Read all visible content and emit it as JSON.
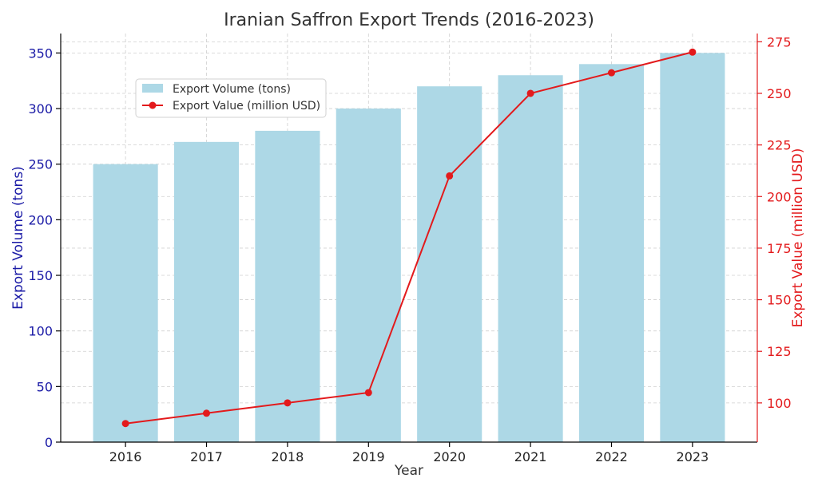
{
  "chart_data": {
    "type": "bar+line",
    "title": "Iranian Saffron Export Trends (2016-2023)",
    "xlabel": "Year",
    "categories": [
      "2016",
      "2017",
      "2018",
      "2019",
      "2020",
      "2021",
      "2022",
      "2023"
    ],
    "series": [
      {
        "name": "Export Volume (tons)",
        "type": "bar",
        "axis": "left",
        "color": "#add8e6",
        "values": [
          250,
          270,
          280,
          300,
          320,
          330,
          340,
          350
        ]
      },
      {
        "name": "Export Value (million USD)",
        "type": "line",
        "axis": "right",
        "color": "#e31a1c",
        "values": [
          90,
          95,
          100,
          105,
          210,
          250,
          260,
          270
        ]
      }
    ],
    "y_left": {
      "label": "Export Volume (tons)",
      "color": "#1a1aa6",
      "ylim": [
        0,
        367.5
      ],
      "ticks": [
        "0",
        "50",
        "100",
        "150",
        "200",
        "250",
        "300",
        "350"
      ]
    },
    "y_right": {
      "label": "Export Value (million USD)",
      "color": "#e31a1c",
      "ylim": [
        81,
        279
      ],
      "ticks": [
        "100",
        "125",
        "150",
        "175",
        "200",
        "225",
        "250",
        "275"
      ]
    },
    "grid": true,
    "legend_position": "upper-left"
  }
}
